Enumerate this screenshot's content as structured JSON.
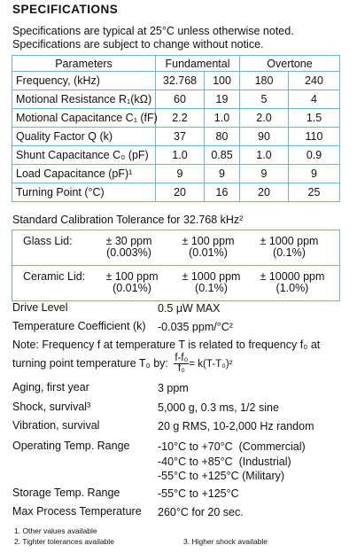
{
  "title": "SPECIFICATIONS",
  "intro": [
    "Specifications are typical at 25°C unless otherwise noted.",
    "Specifications are subject to change without notice."
  ],
  "table": {
    "headers": [
      "Parameters",
      "Fundamental",
      "Overtone"
    ],
    "rows": [
      [
        "Frequency, (kHz)",
        "32.768",
        "100",
        "180",
        "240"
      ],
      [
        "Motional Resistance R₁(kΩ)",
        "60",
        "19",
        "5",
        "4"
      ],
      [
        "Motional Capacitance C₁ (fF)",
        "2.2",
        "1.0",
        "2.0",
        "1.5"
      ],
      [
        "Quality Factor Q (k)",
        "37",
        "80",
        "90",
        "110"
      ],
      [
        "Shunt Capacitance C₀ (pF)",
        "1.0",
        "0.85",
        "1.0",
        "0.9"
      ],
      [
        "Load Capacitance (pF)¹",
        "9",
        "9",
        "9",
        "9"
      ],
      [
        "Turning Point (°C)",
        "20",
        "16",
        "20",
        "25"
      ]
    ]
  },
  "tolerance": {
    "title": "Standard Calibration Tolerance for 32.768 kHz²",
    "rows": [
      {
        "label": "Glass Lid:",
        "cells": [
          [
            "± 30 ppm",
            "(0.003%)"
          ],
          [
            "± 100 ppm",
            "(0.01%)"
          ],
          [
            "± 1000 ppm",
            "(0.1%)"
          ]
        ]
      },
      {
        "label": "Ceramic Lid:",
        "cells": [
          [
            "± 100 ppm",
            "(0.01%)"
          ],
          [
            "± 1000 ppm",
            "(0.1%)"
          ],
          [
            "± 10000 ppm",
            "(1.0%)"
          ]
        ]
      }
    ]
  },
  "specs_a": [
    {
      "label": "Drive Level",
      "values": [
        "0.5 μW MAX"
      ]
    },
    {
      "label": "Temperature Coefficient (k)",
      "values": [
        "-0.035 ppm/°C²"
      ]
    }
  ],
  "note": {
    "lines": [
      "Note: Frequency f at temperature T is related to frequency f₀ at",
      "turning point temperature T₀ by:"
    ],
    "numerator": "f-f₀",
    "denominator": "f₀",
    "rhs": "= k(T-T₀)²"
  },
  "specs_b": [
    {
      "label": "Aging, first year",
      "values": [
        "3 ppm"
      ]
    },
    {
      "label": "Shock, survival³",
      "values": [
        "5,000 g, 0.3 ms, 1/2 sine"
      ]
    },
    {
      "label": "Vibration, survival",
      "values": [
        "20 g RMS, 10-2,000 Hz random"
      ]
    },
    {
      "label": "Operating Temp. Range",
      "values": [
        "-10°C to +70°C  (Commercial)",
        "-40°C to +85°C  (Industrial)",
        "-55°C to +125°C (Military)"
      ]
    },
    {
      "label": "Storage Temp. Range",
      "values": [
        "-55°C to +125°C"
      ]
    },
    {
      "label": "Max Process Temperature",
      "values": [
        "260°C for 20 sec."
      ]
    }
  ],
  "footnotes": [
    "1. Other values available",
    "2. Tighter tolerances available",
    "3. Higher shock available"
  ]
}
